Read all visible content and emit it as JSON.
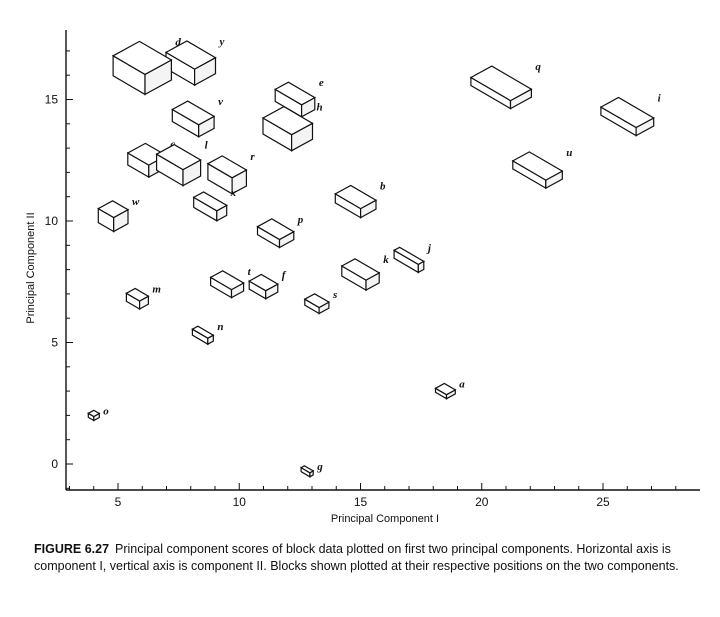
{
  "chart_data": {
    "type": "scatter",
    "xlabel": "Principal Component I",
    "ylabel": "Principal Component II",
    "xlim": [
      3,
      29
    ],
    "ylim": [
      -1,
      18
    ],
    "x_ticks": [
      5,
      10,
      15,
      20,
      25
    ],
    "y_ticks": [
      0,
      5,
      10,
      15
    ],
    "points": [
      {
        "label": "a",
        "x": 18.5,
        "y": 3.0
      },
      {
        "label": "b",
        "x": 14.8,
        "y": 10.8
      },
      {
        "label": "c",
        "x": 6.2,
        "y": 12.5
      },
      {
        "label": "d",
        "x": 6.0,
        "y": 16.3
      },
      {
        "label": "e",
        "x": 12.3,
        "y": 15.0
      },
      {
        "label": "f",
        "x": 11.0,
        "y": 7.3
      },
      {
        "label": "g",
        "x": 12.8,
        "y": -0.3
      },
      {
        "label": "h",
        "x": 12.0,
        "y": 13.8
      },
      {
        "label": "i",
        "x": 26.0,
        "y": 14.3
      },
      {
        "label": "j",
        "x": 17.0,
        "y": 8.4
      },
      {
        "label": "k",
        "x": 15.0,
        "y": 7.8
      },
      {
        "label": "l",
        "x": 7.5,
        "y": 12.3
      },
      {
        "label": "m",
        "x": 5.8,
        "y": 6.8
      },
      {
        "label": "n",
        "x": 8.5,
        "y": 5.3
      },
      {
        "label": "p",
        "x": 11.5,
        "y": 9.5
      },
      {
        "label": "q",
        "x": 20.8,
        "y": 15.5
      },
      {
        "label": "r",
        "x": 9.5,
        "y": 11.9
      },
      {
        "label": "s",
        "x": 13.2,
        "y": 6.6
      },
      {
        "label": "t",
        "x": 9.5,
        "y": 7.4
      },
      {
        "label": "u",
        "x": 22.3,
        "y": 12.1
      },
      {
        "label": "v",
        "x": 8.1,
        "y": 14.2
      },
      {
        "label": "w",
        "x": 4.8,
        "y": 10.2
      },
      {
        "label": "x",
        "x": 8.8,
        "y": 10.6
      },
      {
        "label": "y",
        "x": 8.0,
        "y": 16.5
      },
      {
        "label": "o",
        "x": 4.0,
        "y": 2.0
      }
    ]
  },
  "caption": {
    "figure_number": "FIGURE 6.27",
    "text": "Principal component scores of block data plotted on first two principal components. Horizontal axis is component I, vertical axis is component II. Blocks shown plotted at their respective positions on the two components."
  }
}
